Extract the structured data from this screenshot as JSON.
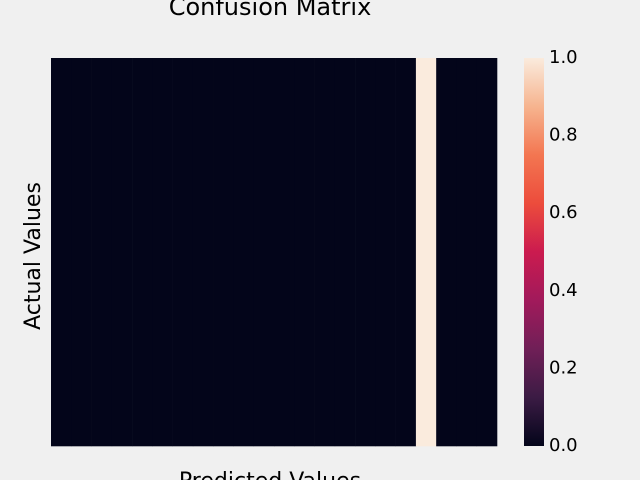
{
  "chart_data": {
    "type": "heatmap",
    "title": "Confusion Matrix",
    "x_label": "Predicted Values",
    "y_label": "Actual Values",
    "values": [
      [
        0,
        0,
        0,
        0,
        0,
        0,
        0,
        0,
        0,
        0,
        0,
        0,
        0,
        0,
        0,
        0,
        0,
        0,
        1,
        0,
        0,
        0
      ]
    ],
    "colormap": [
      "#03051a",
      "#3b1b44",
      "#701f57",
      "#a11a5b",
      "#cb1b4f",
      "#ec4c3c",
      "#f37651",
      "#f6b48f",
      "#faebdd"
    ],
    "clim": [
      0,
      1
    ],
    "cticks": [
      {
        "value": 0,
        "label": "0.0"
      },
      0.2,
      0.4,
      0.6,
      0.8,
      {
        "value": 1,
        "label": "1.0"
      }
    ]
  }
}
